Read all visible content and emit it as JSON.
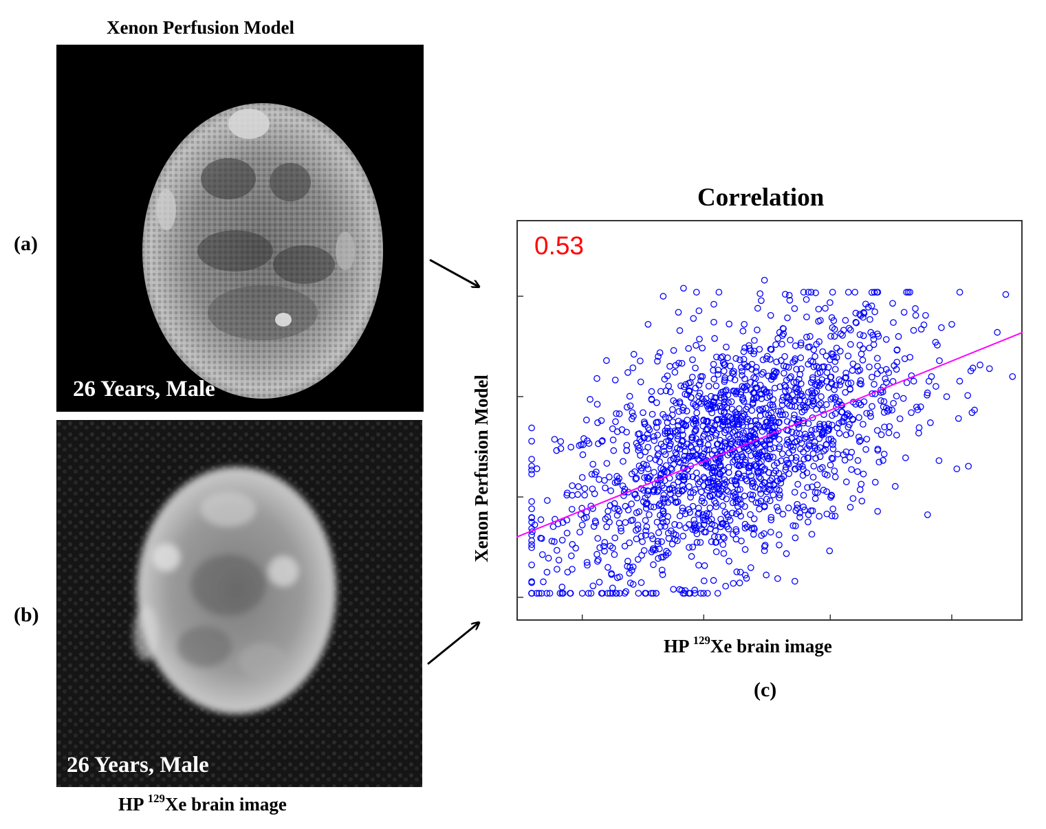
{
  "panel_a": {
    "title": "Xenon Perfusion Model",
    "label": "(a)",
    "overlay_text": "26 Years, Male"
  },
  "panel_b": {
    "label": "(b)",
    "overlay_text": "26 Years, Male",
    "caption_prefix": "HP ",
    "caption_sup": "129",
    "caption_suffix": "Xe brain image"
  },
  "panel_c": {
    "label": "(c)"
  },
  "chart_data": {
    "type": "scatter",
    "title": "Correlation",
    "xlabel_prefix": "HP ",
    "xlabel_sup": "129",
    "xlabel_suffix": "Xe brain image",
    "ylabel": "Xenon Perfusion Model",
    "correlation_text": "0.53",
    "correlation_color": "#ff0000",
    "marker_color": "#0000ff",
    "fit_color": "#ff00ff",
    "xlim": [
      0,
      1
    ],
    "ylim": [
      0,
      1
    ],
    "tick_labels_shown": false,
    "x_ticks": [
      0.13,
      0.37,
      0.62,
      0.86
    ],
    "y_ticks": [
      0.06,
      0.31,
      0.56,
      0.81
    ],
    "fit_line": {
      "x": [
        0,
        1
      ],
      "y": [
        0.21,
        0.72
      ]
    },
    "point_count_estimate": 1800,
    "points_sample": [
      [
        0.04,
        0.07
      ],
      [
        0.06,
        0.07
      ],
      [
        0.09,
        0.07
      ],
      [
        0.13,
        0.07
      ],
      [
        0.17,
        0.07
      ],
      [
        0.19,
        0.07
      ],
      [
        0.27,
        0.07
      ],
      [
        0.31,
        0.08
      ],
      [
        0.08,
        0.13
      ],
      [
        0.11,
        0.13
      ],
      [
        0.14,
        0.14
      ],
      [
        0.22,
        0.15
      ],
      [
        0.29,
        0.16
      ],
      [
        0.36,
        0.14
      ],
      [
        0.42,
        0.15
      ],
      [
        0.55,
        0.1
      ],
      [
        0.07,
        0.2
      ],
      [
        0.1,
        0.22
      ],
      [
        0.13,
        0.24
      ],
      [
        0.18,
        0.26
      ],
      [
        0.24,
        0.24
      ],
      [
        0.3,
        0.22
      ],
      [
        0.38,
        0.25
      ],
      [
        0.47,
        0.23
      ],
      [
        0.15,
        0.33
      ],
      [
        0.2,
        0.35
      ],
      [
        0.26,
        0.38
      ],
      [
        0.33,
        0.36
      ],
      [
        0.4,
        0.4
      ],
      [
        0.48,
        0.42
      ],
      [
        0.55,
        0.38
      ],
      [
        0.63,
        0.36
      ],
      [
        0.14,
        0.45
      ],
      [
        0.19,
        0.48
      ],
      [
        0.25,
        0.52
      ],
      [
        0.31,
        0.55
      ],
      [
        0.37,
        0.5
      ],
      [
        0.44,
        0.53
      ],
      [
        0.5,
        0.57
      ],
      [
        0.57,
        0.55
      ],
      [
        0.22,
        0.62
      ],
      [
        0.28,
        0.66
      ],
      [
        0.34,
        0.68
      ],
      [
        0.41,
        0.64
      ],
      [
        0.47,
        0.7
      ],
      [
        0.53,
        0.66
      ],
      [
        0.6,
        0.62
      ],
      [
        0.68,
        0.6
      ],
      [
        0.26,
        0.74
      ],
      [
        0.32,
        0.77
      ],
      [
        0.39,
        0.79
      ],
      [
        0.45,
        0.74
      ],
      [
        0.52,
        0.72
      ],
      [
        0.58,
        0.71
      ],
      [
        0.66,
        0.69
      ],
      [
        0.72,
        0.55
      ],
      [
        0.29,
        0.81
      ],
      [
        0.33,
        0.83
      ],
      [
        0.4,
        0.82
      ],
      [
        0.49,
        0.85
      ],
      [
        0.54,
        0.8
      ],
      [
        0.61,
        0.78
      ],
      [
        0.65,
        0.75
      ],
      [
        0.7,
        0.72
      ],
      [
        0.78,
        0.52
      ],
      [
        0.82,
        0.61
      ],
      [
        0.85,
        0.56
      ],
      [
        0.87,
        0.38
      ],
      [
        0.9,
        0.52
      ],
      [
        0.95,
        0.72
      ],
      [
        0.98,
        0.61
      ],
      [
        0.86,
        0.74
      ]
    ]
  }
}
